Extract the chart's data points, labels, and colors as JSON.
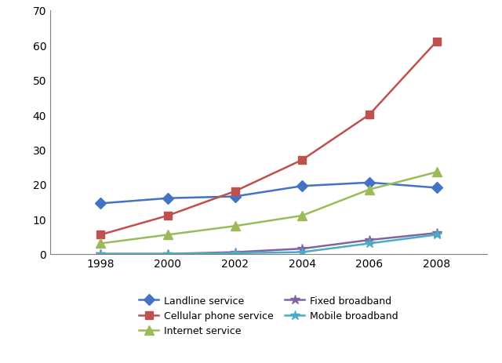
{
  "years": [
    1998,
    2000,
    2002,
    2004,
    2006,
    2008
  ],
  "series": [
    {
      "label": "Landline service",
      "values": [
        14.5,
        16.0,
        16.5,
        19.5,
        20.5,
        19.0
      ],
      "color": "#4472C4",
      "marker": "D",
      "markersize": 7
    },
    {
      "label": "Cellular phone service",
      "values": [
        5.5,
        11.0,
        18.0,
        27.0,
        40.0,
        61.0
      ],
      "color": "#C0504D",
      "marker": "s",
      "markersize": 7
    },
    {
      "label": "Internet service",
      "values": [
        3.0,
        5.5,
        8.0,
        11.0,
        18.5,
        23.5
      ],
      "color": "#9BBB59",
      "marker": "^",
      "markersize": 8
    },
    {
      "label": "Fixed broadband",
      "values": [
        0.0,
        0.0,
        0.5,
        1.5,
        4.0,
        6.0
      ],
      "color": "#8064A2",
      "marker": "*",
      "markersize": 9
    },
    {
      "label": "Mobile broadband",
      "values": [
        0.0,
        0.0,
        0.2,
        0.5,
        3.0,
        5.5
      ],
      "color": "#4BACC6",
      "marker": "*",
      "markersize": 9
    }
  ],
  "ylim": [
    0,
    70
  ],
  "yticks": [
    0,
    10,
    20,
    30,
    40,
    50,
    60,
    70
  ],
  "xticks": [
    1998,
    2000,
    2002,
    2004,
    2006,
    2008
  ],
  "xlim": [
    1996.5,
    2009.5
  ],
  "background_color": "#FFFFFF",
  "legend_order": [
    0,
    1,
    2,
    3,
    4
  ],
  "legend_ncol": 2,
  "legend_fontsize": 9
}
